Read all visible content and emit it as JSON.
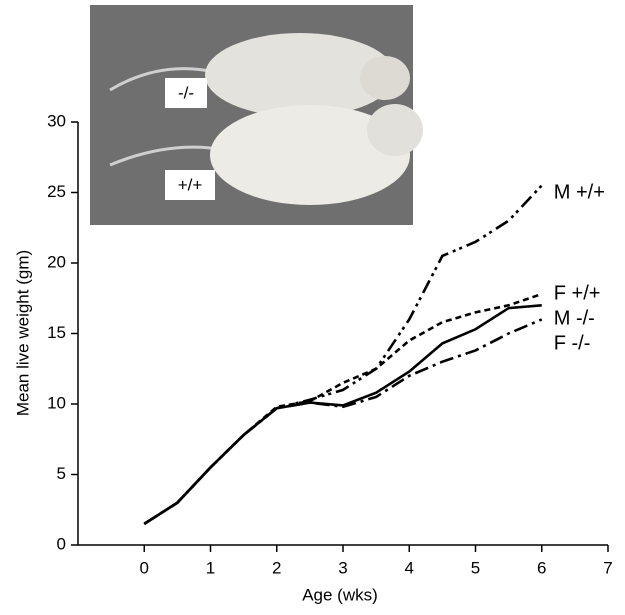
{
  "chart_data": {
    "type": "line",
    "xlabel": "Age (wks)",
    "ylabel": "Mean live weight (gm)",
    "annotations": [
      "-/-",
      "+/+"
    ],
    "x": [
      0,
      0.5,
      1,
      1.5,
      2,
      2.5,
      3,
      3.5,
      4,
      4.5,
      5,
      5.5,
      6
    ],
    "series": [
      {
        "name": "M +/+",
        "color": "#000000",
        "dash": "14 5 3 4 3 5",
        "values": [
          1.5,
          3,
          5.5,
          7.8,
          9.7,
          10.3,
          11,
          12.5,
          16,
          20.5,
          21.5,
          23,
          25.5
        ]
      },
      {
        "name": "F +/+",
        "color": "#000000",
        "dash": "6 4",
        "values": [
          1.5,
          3,
          5.5,
          7.8,
          9.8,
          10.2,
          11.5,
          12.5,
          14.5,
          15.8,
          16.5,
          17,
          17.8
        ]
      },
      {
        "name": "M -/-",
        "color": "#000000",
        "dash": "none",
        "values": [
          1.5,
          3,
          5.5,
          7.8,
          9.7,
          10.1,
          9.9,
          10.8,
          12.3,
          14.3,
          15.3,
          16.8,
          17
        ]
      },
      {
        "name": "F -/-",
        "color": "#000000",
        "dash": "14 5 3 5",
        "values": [
          1.5,
          3,
          5.5,
          7.8,
          9.7,
          10.1,
          9.8,
          10.5,
          12,
          13,
          13.8,
          15,
          16
        ]
      }
    ],
    "xlim": [
      -1,
      7
    ],
    "ylim": [
      0,
      30
    ],
    "xticks": [
      0,
      1,
      2,
      3,
      4,
      5,
      6,
      7
    ],
    "yticks": [
      0,
      5,
      10,
      15,
      20,
      25,
      30
    ]
  }
}
